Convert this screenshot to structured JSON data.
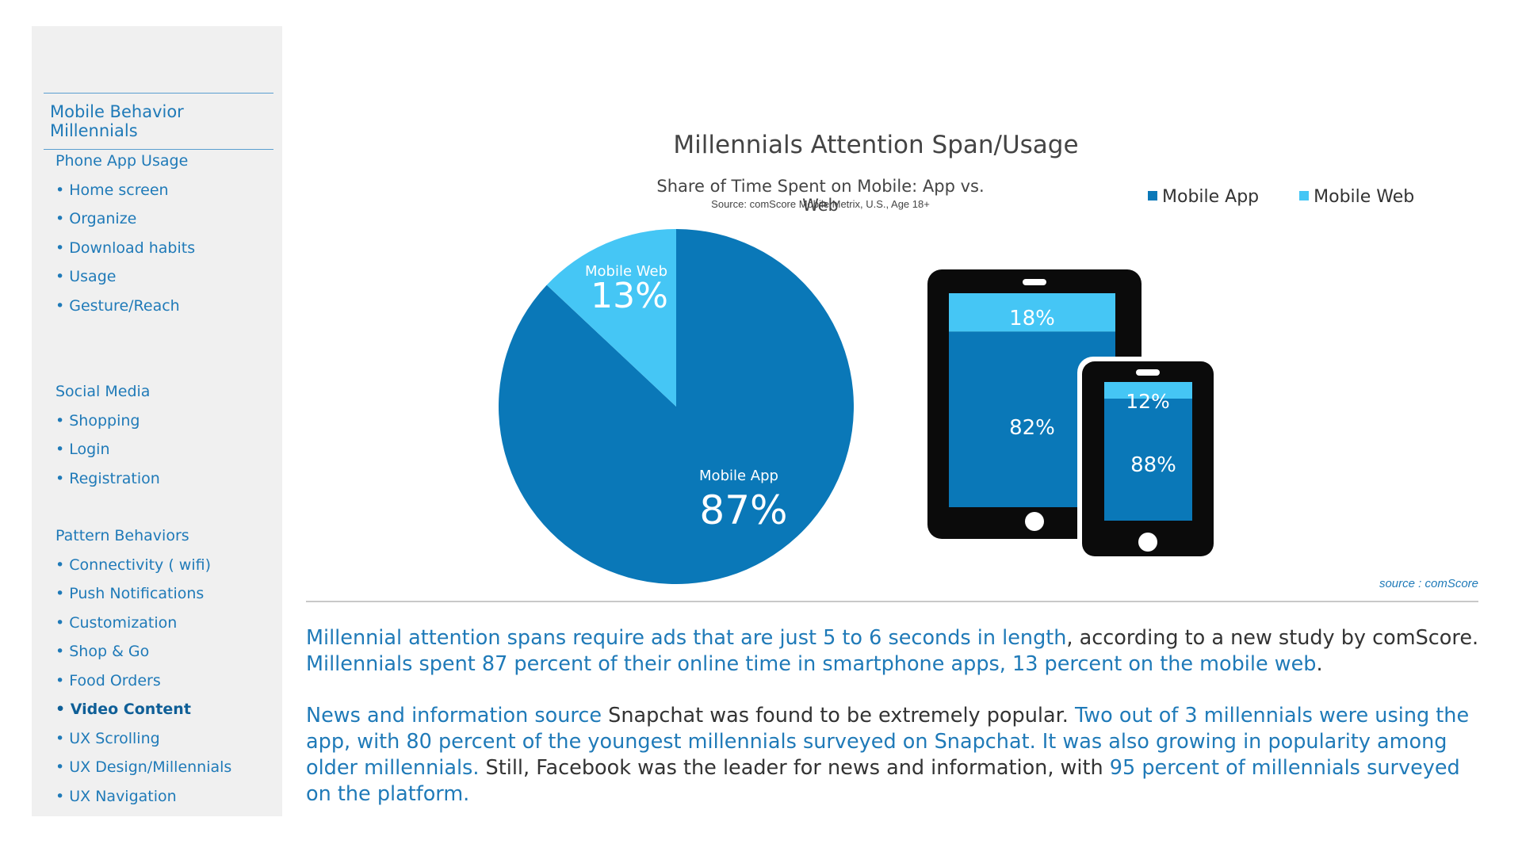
{
  "sidebar": {
    "title": "Mobile Behavior Millennials",
    "groups": [
      {
        "heading": "Phone App Usage",
        "items": [
          "• Home screen",
          "• Organize",
          "• Download habits",
          "• Usage",
          "• Gesture/Reach"
        ]
      },
      {
        "heading": "Social Media",
        "items": [
          "• Shopping",
          "• Login",
          "• Registration"
        ]
      },
      {
        "heading": "Pattern Behaviors",
        "items": [
          "• Connectivity ( wifi)",
          "• Push Notifications",
          "• Customization",
          "• Shop & Go",
          "• Food Orders",
          "• Video Content",
          "• UX Scrolling",
          "• UX Design/Millennials",
          "• UX Navigation"
        ],
        "active_item": "• Video Content"
      }
    ]
  },
  "colors": {
    "app": "#0a78b8",
    "web": "#45c6f5",
    "device_frame": "#0b0b0b",
    "link": "#1f7ab8"
  },
  "chart_data": {
    "type": "pie",
    "title": "Millennials Attention Span/Usage",
    "subtitle": "Share of Time Spent on Mobile: App vs. Web",
    "source": "Source: comScore Mobile Metrix, U.S., Age 18+",
    "legend": [
      "Mobile App",
      "Mobile Web"
    ],
    "legend_placement": "top-right",
    "slices": [
      {
        "name": "Mobile Web",
        "value": 13,
        "label": "13%"
      },
      {
        "name": "Mobile App",
        "value": 87,
        "label": "87%"
      }
    ],
    "devices": [
      {
        "name": "tablet",
        "web": 18,
        "app": 82,
        "web_label": "18%",
        "app_label": "82%"
      },
      {
        "name": "phone",
        "web": 12,
        "app": 88,
        "web_label": "12%",
        "app_label": "88%"
      }
    ]
  },
  "source_note": "source : comScore",
  "paragraphs": {
    "p1": [
      {
        "text": "Millennial attention spans require ads that are just 5 to 6 seconds in length",
        "hl": true
      },
      {
        "text": ", according to a new study by comScore.",
        "hl": false
      },
      {
        "text": "\nMillennials spent 87 percent of their online time in smartphone apps, 13 percent on the mobile web",
        "hl": true
      },
      {
        "text": ".",
        "hl": false
      }
    ],
    "p2": [
      {
        "text": "News and information source",
        "hl": true
      },
      {
        "text": " Snapchat was found to be extremely popular. ",
        "hl": false
      },
      {
        "text": "Two out of 3 millennials were using the app, with 80 percent of the youngest millennials surveyed on Snapchat. It was also growing in popularity among older millennials.",
        "hl": true
      },
      {
        "text": " Still, Facebook was the leader for news and information, with ",
        "hl": false
      },
      {
        "text": "95 percent of millennials surveyed on the platform.",
        "hl": true
      }
    ]
  }
}
